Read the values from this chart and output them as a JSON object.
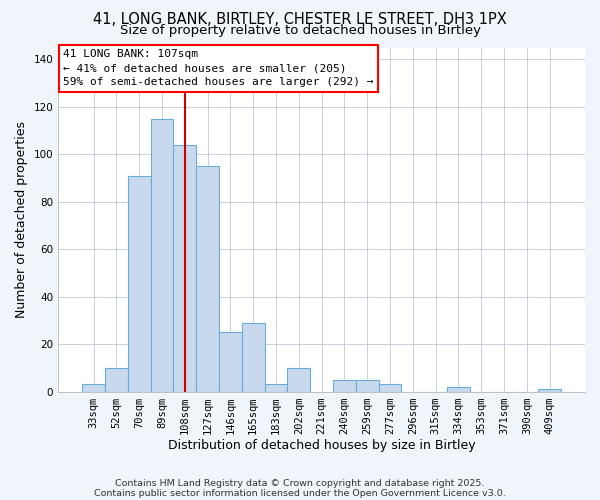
{
  "title1": "41, LONG BANK, BIRTLEY, CHESTER LE STREET, DH3 1PX",
  "title2": "Size of property relative to detached houses in Birtley",
  "xlabel": "Distribution of detached houses by size in Birtley",
  "ylabel": "Number of detached properties",
  "bar_labels": [
    "33sqm",
    "52sqm",
    "70sqm",
    "89sqm",
    "108sqm",
    "127sqm",
    "146sqm",
    "165sqm",
    "183sqm",
    "202sqm",
    "221sqm",
    "240sqm",
    "259sqm",
    "277sqm",
    "296sqm",
    "315sqm",
    "334sqm",
    "353sqm",
    "371sqm",
    "390sqm",
    "409sqm"
  ],
  "bar_heights": [
    3,
    10,
    91,
    115,
    104,
    95,
    25,
    29,
    3,
    10,
    0,
    5,
    5,
    3,
    0,
    0,
    2,
    0,
    0,
    0,
    1
  ],
  "bar_color": "#c8d9ee",
  "bar_edge_color": "#6aacd8",
  "vline_color": "#cc0000",
  "annotation_lines": [
    "41 LONG BANK: 107sqm",
    "← 41% of detached houses are smaller (205)",
    "59% of semi-detached houses are larger (292) →"
  ],
  "ylim": [
    0,
    145
  ],
  "yticks": [
    0,
    20,
    40,
    60,
    80,
    100,
    120,
    140
  ],
  "footnote1": "Contains HM Land Registry data © Crown copyright and database right 2025.",
  "footnote2": "Contains public sector information licensed under the Open Government Licence v3.0.",
  "bg_color": "#f0f4fb",
  "plot_bg_color": "#ffffff",
  "title_fontsize": 10.5,
  "subtitle_fontsize": 9.5,
  "axis_label_fontsize": 9,
  "tick_fontsize": 7.5,
  "annotation_fontsize": 8,
  "footnote_fontsize": 6.8
}
